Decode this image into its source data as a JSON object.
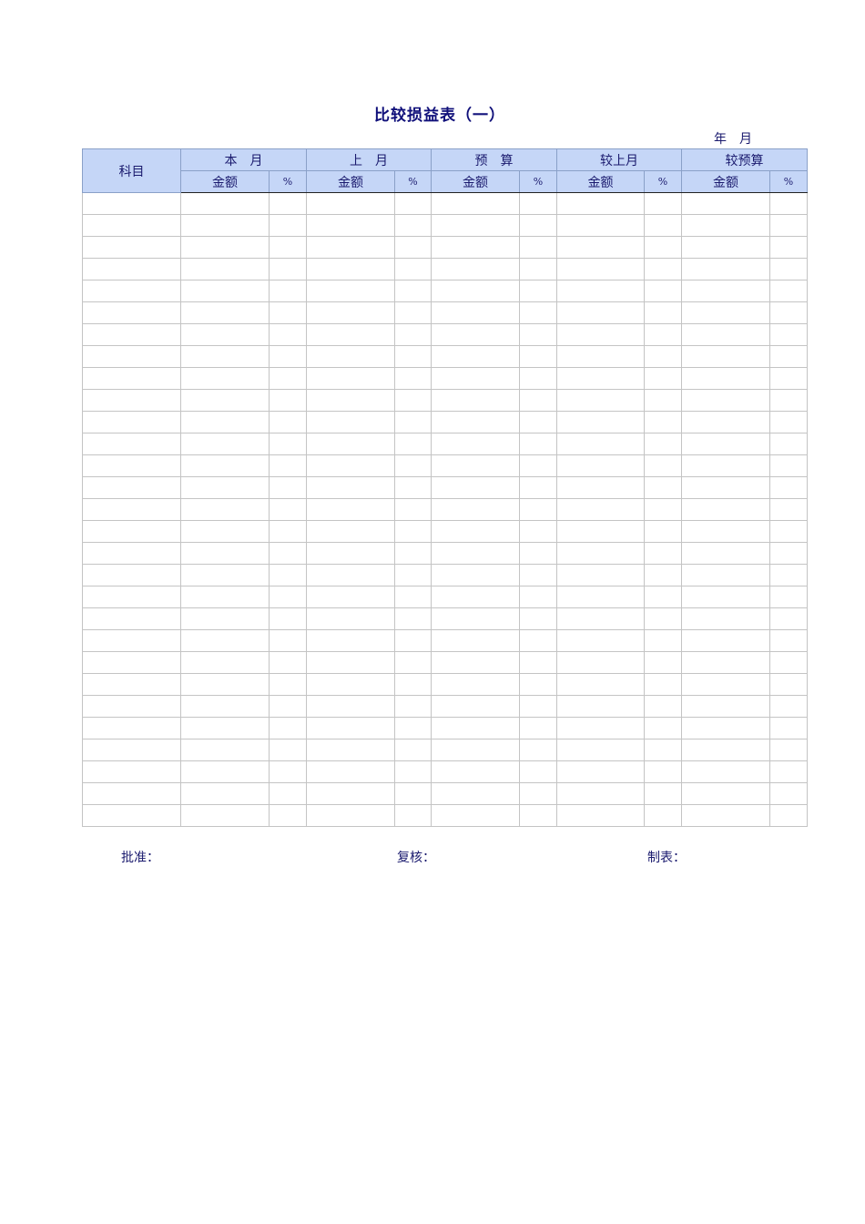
{
  "title": "比较损益表（一）",
  "date_label": "年　月",
  "header": {
    "subject": "科目",
    "groups": [
      "本　月",
      "上　月",
      "预　算",
      "较上月",
      "较预算"
    ],
    "amount": "金额",
    "percent": "%"
  },
  "row_count": 29,
  "footer": {
    "approve": "批准：",
    "review": "复核：",
    "prepare": "制表："
  }
}
